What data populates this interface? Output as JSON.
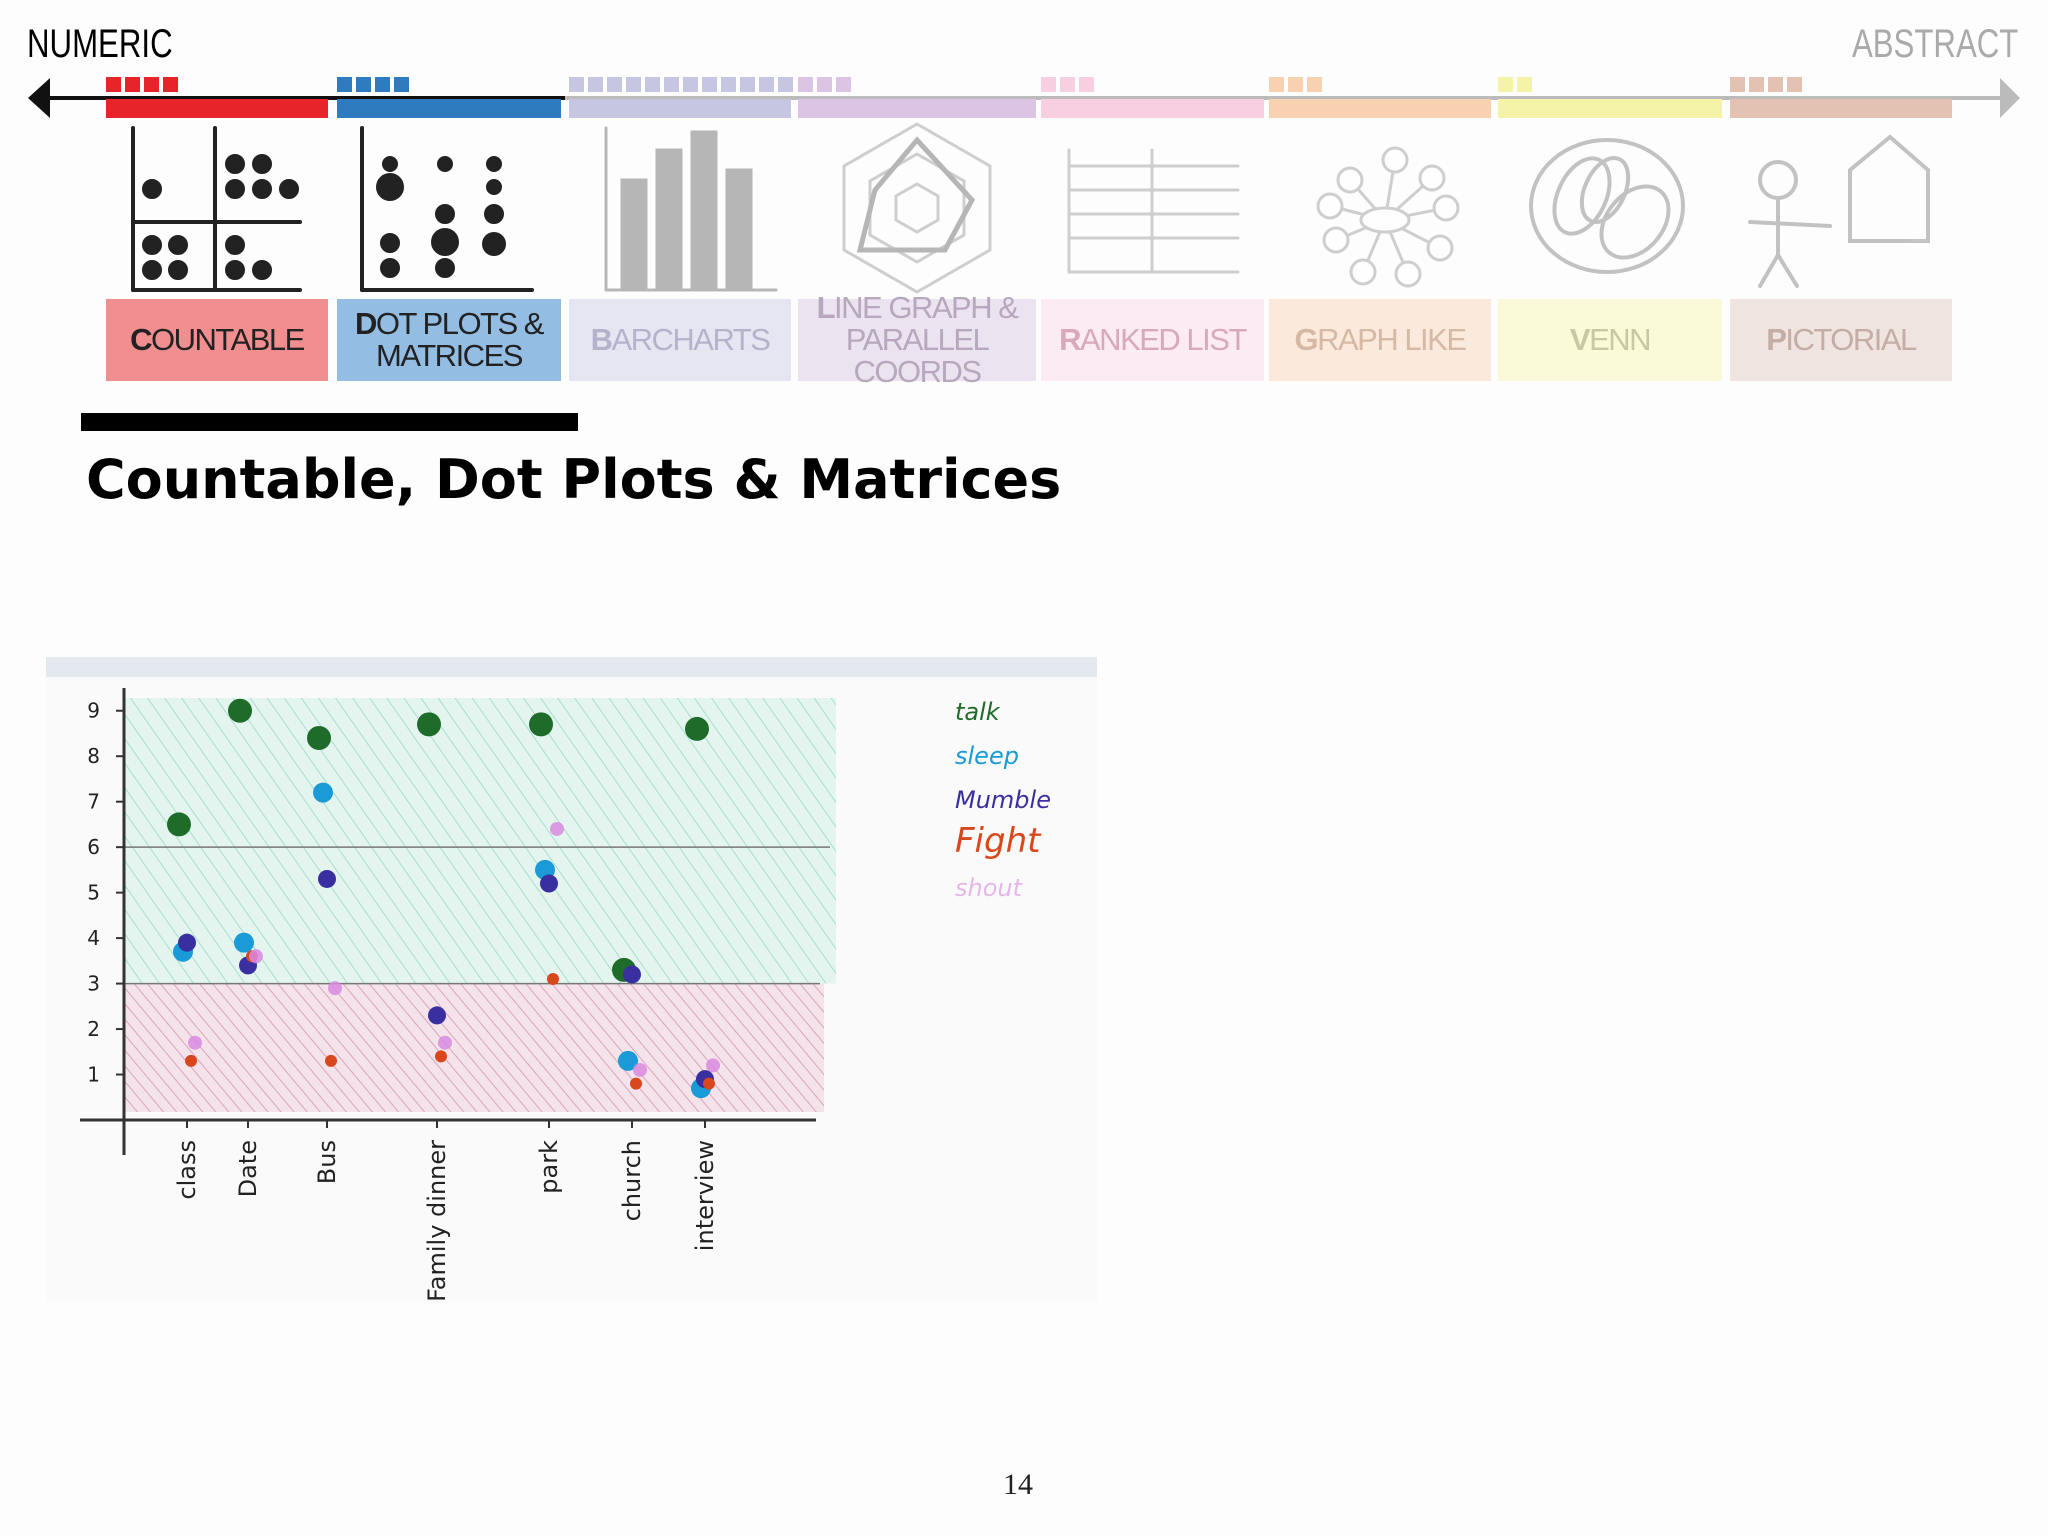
{
  "header": {
    "left": "NUMERIC",
    "right": "ABSTRACT",
    "categories": [
      "COUNTABLE",
      "DOT PLOTS & MATRICES",
      "BARCHARTS",
      "LINE GRAPH & PARALLEL COORDS",
      "RANKED LIST",
      "GRAPH LIKE",
      "VENN",
      "PICTORIAL"
    ]
  },
  "title": "Countable, Dot Plots & Matrices",
  "chart_data": {
    "type": "scatter",
    "categories": [
      "class",
      "Date",
      "Bus",
      "Family dinner",
      "park",
      "church",
      "interview"
    ],
    "series": [
      {
        "name": "talk",
        "color": "#1f6b2a",
        "values": [
          6.5,
          9,
          8.4,
          8.7,
          8.7,
          3.3,
          8.6
        ]
      },
      {
        "name": "sleep",
        "color": "#1a9ad6",
        "values": [
          3.7,
          3.9,
          7.2,
          null,
          5.5,
          1.3,
          0.7
        ]
      },
      {
        "name": "Mumble",
        "color": "#3a2fa0",
        "values": [
          3.9,
          3.4,
          5.3,
          2.3,
          5.2,
          3.2,
          0.9
        ]
      },
      {
        "name": "Fight",
        "color": "#d9471c",
        "values": [
          1.3,
          3.6,
          1.3,
          1.4,
          3.1,
          0.8,
          0.8
        ]
      },
      {
        "name": "shout",
        "color": "#d98ae0",
        "values": [
          1.7,
          3.6,
          2.9,
          1.7,
          6.4,
          1.1,
          1.2
        ]
      }
    ],
    "ylim": [
      0,
      9.5
    ],
    "yticks": [
      1,
      2,
      3,
      4,
      5,
      6,
      7,
      8,
      9
    ]
  },
  "page_number": 14
}
